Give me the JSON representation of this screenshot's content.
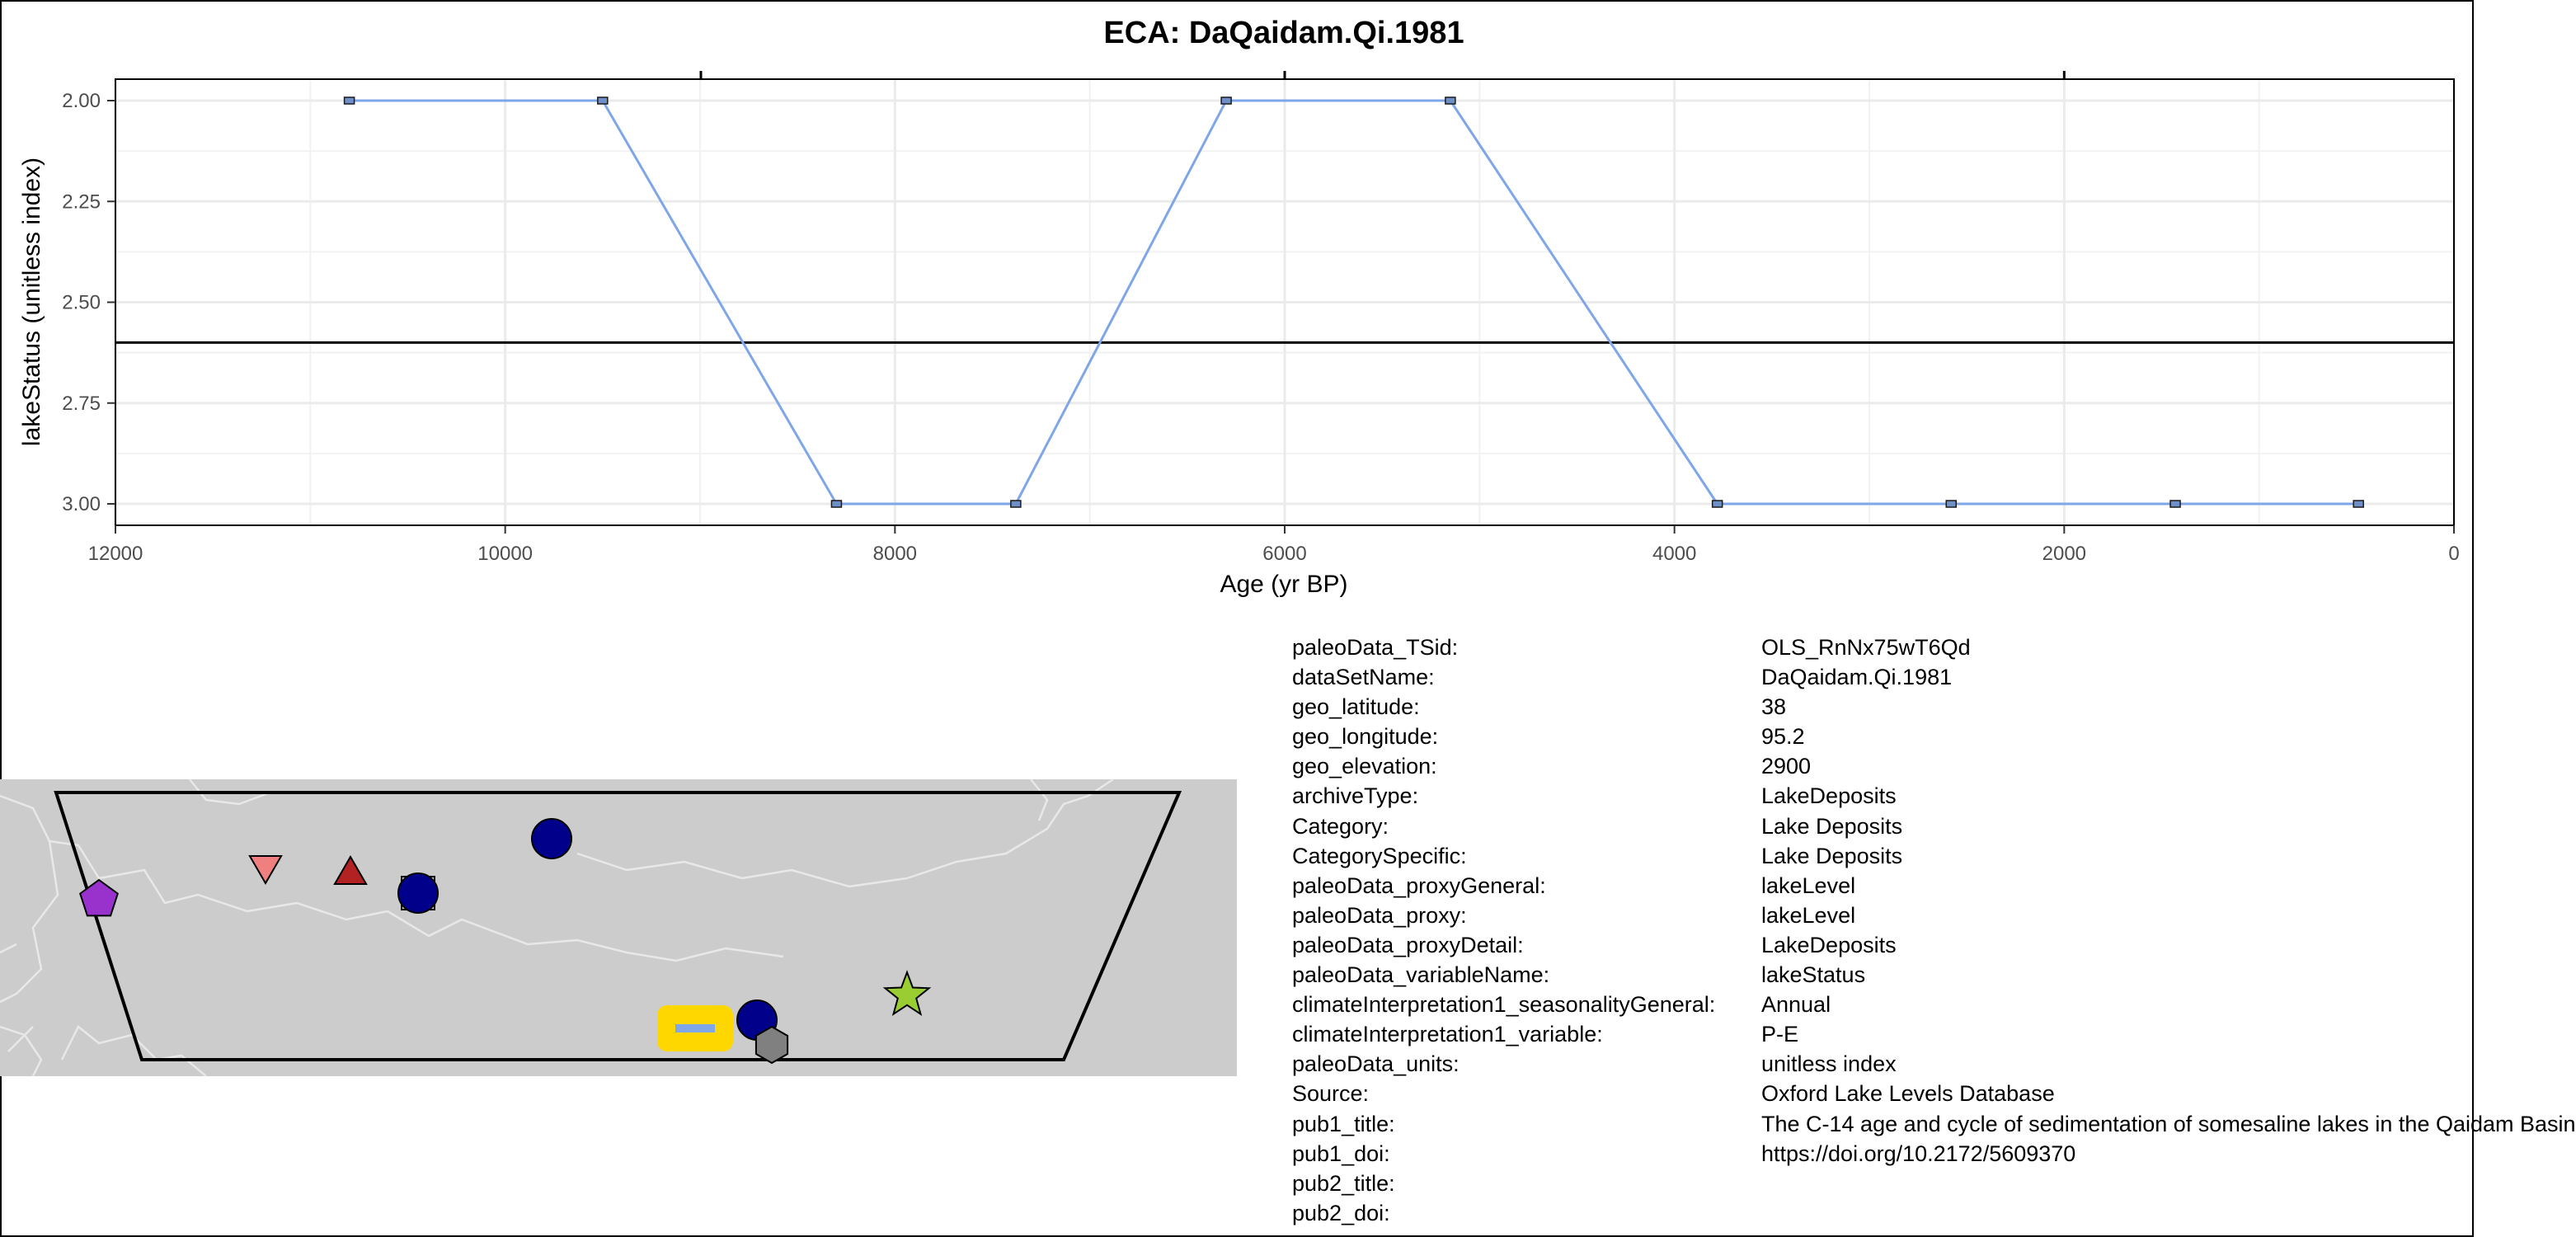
{
  "chart_data": {
    "type": "line",
    "title": "ECA: DaQaidam.Qi.1981",
    "xlabel": "Age (yr BP)",
    "ylabel": "lakeStatus (unitless index)",
    "xlim": [
      12000,
      0
    ],
    "ylim": [
      3.0,
      2.0
    ],
    "x_reversed": true,
    "y_reversed": true,
    "x_ticks": [
      12000,
      10000,
      8000,
      6000,
      4000,
      2000,
      0
    ],
    "x_tick_labels": [
      "12000",
      "10000",
      "8000",
      "6000",
      "4000",
      "2000",
      "0"
    ],
    "y_ticks": [
      2.0,
      2.25,
      2.5,
      2.75,
      3.0
    ],
    "y_tick_labels": [
      "2.00",
      "2.25",
      "2.50",
      "2.75",
      "3.00"
    ],
    "grid": true,
    "reference_line_y": 2.6,
    "line_color": "#7ea6e8",
    "marker_fill": "#6f8fc9",
    "x": [
      10800,
      9500,
      8300,
      7380,
      6300,
      5150,
      3780,
      2580,
      1430,
      490
    ],
    "y": [
      2,
      2,
      3,
      3,
      2,
      2,
      3,
      3,
      3,
      3
    ]
  },
  "map": {
    "background_color": "#cccccc",
    "frame_color": "#000000",
    "markers": [
      {
        "shape": "pentagon",
        "color": "#9932cc",
        "icon": "pentagon-marker"
      },
      {
        "shape": "triangle-down",
        "color": "#f08080",
        "icon": "triangle-down-marker"
      },
      {
        "shape": "triangle-up",
        "color": "#b22222",
        "icon": "triangle-up-marker"
      },
      {
        "shape": "circle",
        "color": "#00008b",
        "icon": "circle-marker"
      },
      {
        "shape": "circle",
        "color": "#00008b",
        "icon": "circle-marker"
      },
      {
        "shape": "circle",
        "color": "#00008b",
        "icon": "circle-marker"
      },
      {
        "shape": "star",
        "color": "#9acd32",
        "icon": "star-marker"
      },
      {
        "shape": "hexagon",
        "color": "#808080",
        "icon": "hexagon-marker"
      },
      {
        "shape": "site-highlight",
        "color": "#ffd700",
        "icon": "site-marker"
      }
    ]
  },
  "metadata": [
    {
      "key": "paleoData_TSid:",
      "value": "OLS_RnNx75wT6Qd"
    },
    {
      "key": "dataSetName:",
      "value": "DaQaidam.Qi.1981"
    },
    {
      "key": "geo_latitude:",
      "value": "38"
    },
    {
      "key": "geo_longitude:",
      "value": "95.2"
    },
    {
      "key": "geo_elevation:",
      "value": "2900"
    },
    {
      "key": "archiveType:",
      "value": "LakeDeposits"
    },
    {
      "key": "Category:",
      "value": "Lake Deposits"
    },
    {
      "key": "CategorySpecific:",
      "value": "Lake Deposits"
    },
    {
      "key": "paleoData_proxyGeneral:",
      "value": "lakeLevel"
    },
    {
      "key": "paleoData_proxy:",
      "value": "lakeLevel"
    },
    {
      "key": "paleoData_proxyDetail:",
      "value": "LakeDeposits"
    },
    {
      "key": "paleoData_variableName:",
      "value": "lakeStatus"
    },
    {
      "key": "climateInterpretation1_seasonalityGeneral:",
      "value": "Annual"
    },
    {
      "key": "climateInterpretation1_variable:",
      "value": "P-E"
    },
    {
      "key": "paleoData_units:",
      "value": "unitless index"
    },
    {
      "key": "Source:",
      "value": "Oxford Lake Levels Database"
    },
    {
      "key": "pub1_title:",
      "value": "The C-14 age and cycle of sedimentation of somesaline lakes in the Qaidam Basin"
    },
    {
      "key": "pub1_doi:",
      "value": "https://doi.org/10.2172/5609370"
    },
    {
      "key": "pub2_title:",
      "value": ""
    },
    {
      "key": "pub2_doi:",
      "value": ""
    }
  ]
}
